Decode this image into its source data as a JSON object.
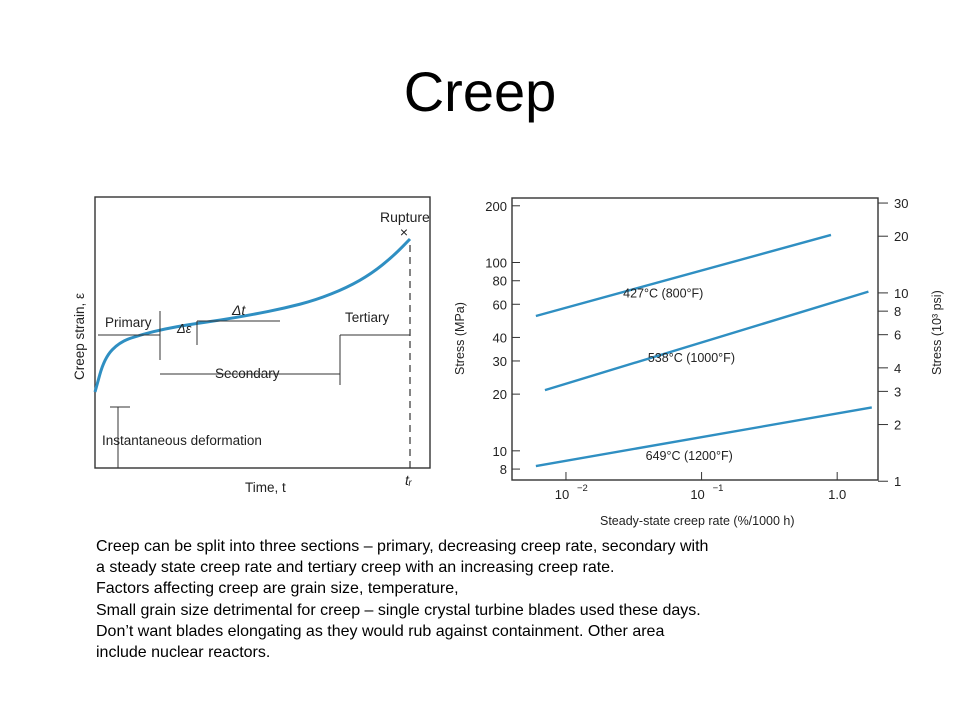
{
  "slide": {
    "title": "Creep",
    "body_lines": [
      "Creep can be split into three sections – primary, decreasing creep rate, secondary with",
      "a steady state creep rate and tertiary creep with an increasing creep rate.",
      "Factors affecting creep are grain size, temperature,",
      "Small grain size detrimental for creep – single crystal turbine blades used these days.",
      "Don’t want blades elongating as they would rub against containment. Other area",
      "include nuclear reactors."
    ]
  },
  "chart_data": [
    {
      "type": "line",
      "ylabel": "Creep strain, ε",
      "xlabel": "Time, t",
      "x_tick_labels": [
        "tᵣ"
      ],
      "annotations": {
        "rupture": "Rupture",
        "rupture_marker": "×",
        "primary": "Primary",
        "secondary": "Secondary",
        "tertiary": "Tertiary",
        "delta_t": "Δt",
        "delta_eps": "Δε",
        "instantaneous": "Instantaneous deformation"
      },
      "series": [
        {
          "x": [
            0,
            0.03,
            0.08,
            0.15,
            0.22,
            0.3,
            0.4,
            0.5,
            0.6,
            0.7,
            0.8,
            0.88,
            0.95,
            1.0
          ],
          "y": [
            0.1,
            0.29,
            0.38,
            0.42,
            0.45,
            0.475,
            0.5,
            0.53,
            0.565,
            0.61,
            0.68,
            0.76,
            0.86,
            0.95
          ]
        }
      ],
      "color": "#2f8fc2"
    },
    {
      "type": "line",
      "xlabel": "Steady-state creep rate (%/1000 h)",
      "ylabel": "Stress (MPa)",
      "ylabel_right": "Stress (10³ psi)",
      "x_scale": "log",
      "y_scale": "log",
      "xlim": [
        0.004,
        2
      ],
      "ylim": [
        7,
        220
      ],
      "x_ticks": [
        {
          "value": 0.01,
          "base": "10",
          "exp": "−2"
        },
        {
          "value": 0.1,
          "base": "10",
          "exp": "−1"
        },
        {
          "value": 1.0,
          "base": "1.0",
          "exp": ""
        }
      ],
      "y_ticks": [
        200,
        100,
        80,
        60,
        40,
        30,
        20,
        10,
        8
      ],
      "y_ticks_right": [
        30,
        20,
        10,
        8,
        6,
        4,
        3,
        2,
        1
      ],
      "series": [
        {
          "name": "427°C (800°F)",
          "x": [
            0.006,
            0.9
          ],
          "y": [
            52,
            140
          ]
        },
        {
          "name": "538°C (1000°F)",
          "x": [
            0.007,
            1.7
          ],
          "y": [
            21,
            70
          ]
        },
        {
          "name": "649°C (1200°F)",
          "x": [
            0.006,
            1.8
          ],
          "y": [
            8.3,
            17
          ]
        }
      ],
      "color": "#2f8fc2"
    }
  ]
}
